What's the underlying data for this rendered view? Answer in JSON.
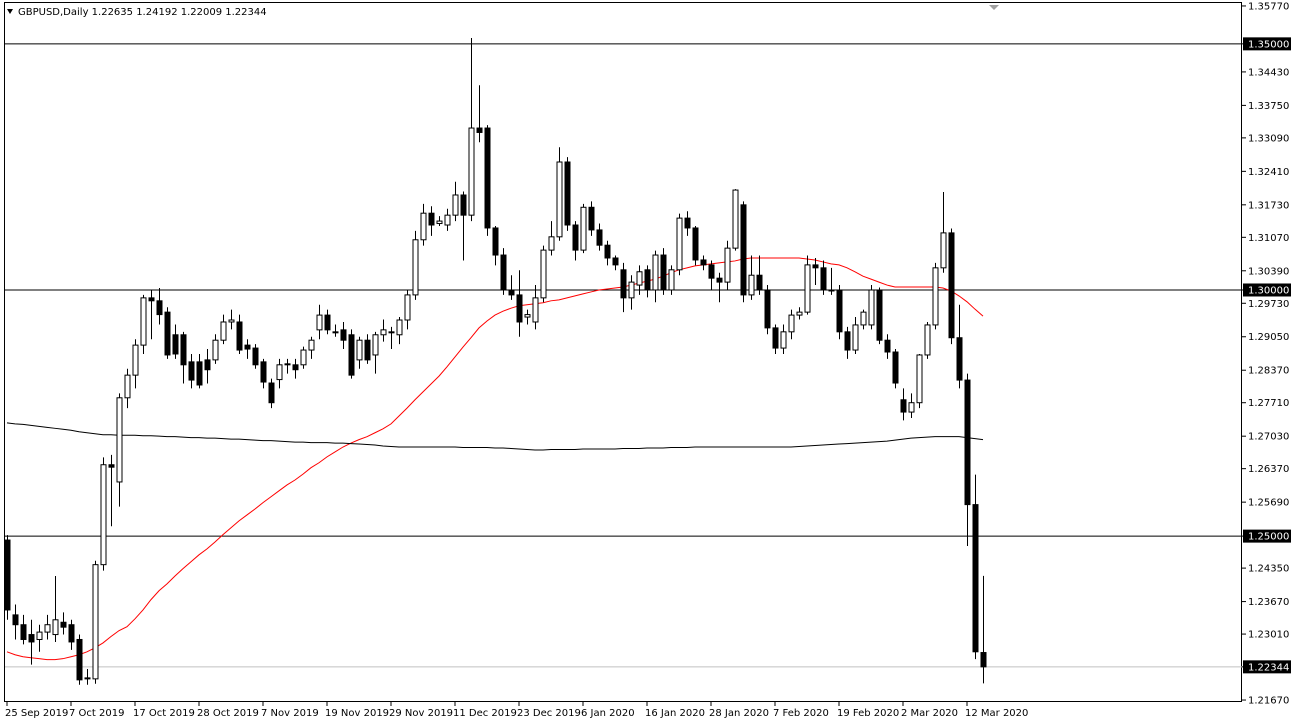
{
  "chart_data": {
    "type": "candlestick",
    "title": "GBPUSD,Daily  1.22635 1.24192 1.22009 1.22344",
    "categories": [
      "25 Sep 2019",
      null,
      null,
      null,
      null,
      null,
      null,
      null,
      "7 Oct 2019",
      null,
      null,
      null,
      null,
      null,
      null,
      null,
      "17 Oct 2019",
      null,
      null,
      null,
      null,
      null,
      null,
      null,
      "28 Oct 2019",
      null,
      null,
      null,
      null,
      null,
      null,
      null,
      "7 Nov 2019",
      null,
      null,
      null,
      null,
      null,
      null,
      null,
      "19 Nov 2019",
      null,
      null,
      null,
      null,
      null,
      null,
      null,
      "29 Nov 2019",
      null,
      null,
      null,
      null,
      null,
      null,
      null,
      "11 Dec 2019",
      null,
      null,
      null,
      null,
      null,
      null,
      null,
      "23 Dec 2019",
      null,
      null,
      null,
      null,
      null,
      null,
      null,
      "6 Jan 2020",
      null,
      null,
      null,
      null,
      null,
      null,
      null,
      "16 Jan 2020",
      null,
      null,
      null,
      null,
      null,
      null,
      null,
      "28 Jan 2020",
      null,
      null,
      null,
      null,
      null,
      null,
      null,
      "7 Feb 2020",
      null,
      null,
      null,
      null,
      null,
      null,
      null,
      "19 Feb 2020",
      null,
      null,
      null,
      null,
      null,
      null,
      null,
      "2 Mar 2020",
      null,
      null,
      null,
      null,
      null,
      null,
      null,
      "12 Mar 2020",
      null,
      null
    ],
    "open": [
      1.2492,
      1.234,
      1.232,
      1.23,
      1.229,
      1.2305,
      1.23,
      1.2325,
      1.232,
      1.229,
      1.221,
      1.221,
      1.2442,
      1.2645,
      1.261,
      1.2781,
      1.2827,
      1.2888,
      1.2984,
      1.2978,
      1.2955,
      1.2909,
      1.2909,
      1.2854,
      1.2854,
      1.2858,
      1.2858,
      1.2898,
      1.2935,
      1.2935,
      1.2888,
      1.2882,
      1.2854,
      1.2811,
      1.2818,
      1.2848,
      1.2848,
      1.2848,
      1.2878,
      1.2919,
      1.2949,
      1.2915,
      1.2919,
      1.2909,
      1.2858,
      1.2898,
      1.2868,
      1.2909,
      1.2915,
      1.2909,
      1.2939,
      1.299,
      1.3102,
      1.3156,
      1.3135,
      1.3132,
      1.3152,
      1.3193,
      1.3152,
      1.3329,
      1.3329,
      1.3126,
      1.3071,
      1.3,
      1.299,
      1.2945,
      1.2935,
      1.2984,
      1.3081,
      1.3108,
      1.326,
      1.3132,
      1.3081,
      1.3168,
      1.3122,
      1.3091,
      1.3065,
      1.3041,
      1.2984,
      1.301,
      1.3041,
      1.3,
      1.3071,
      1.3,
      1.3041,
      1.3146,
      1.3126,
      1.3061,
      1.3051,
      1.3024,
      1.3016,
      1.3085,
      1.3173,
      1.299,
      1.303,
      1.3,
      1.2923,
      1.2882,
      1.2915,
      1.2949,
      1.2955,
      1.3051,
      1.3045,
      1.3,
      1.3,
      1.2915,
      1.2878,
      1.2929,
      1.2929,
      1.3,
      1.2898,
      1.2874,
      1.2777,
      1.2752,
      1.2771,
      1.2868,
      1.2929,
      1.3045,
      1.3116,
      1.2903,
      1.2817,
      1.2564,
      1.22635
    ],
    "high": [
      1.2502,
      1.2361,
      1.234,
      1.233,
      1.232,
      1.234,
      1.2419,
      1.2345,
      1.233,
      1.23,
      1.223,
      1.245,
      1.266,
      1.2665,
      1.279,
      1.284,
      1.29,
      1.299,
      1.3,
      1.3004,
      1.2965,
      1.293,
      1.2915,
      1.287,
      1.287,
      1.288,
      1.291,
      1.295,
      1.296,
      1.295,
      1.29,
      1.289,
      1.286,
      1.282,
      1.286,
      1.286,
      1.286,
      1.2885,
      1.2905,
      1.297,
      1.296,
      1.293,
      1.2935,
      1.292,
      1.2905,
      1.291,
      1.2915,
      1.294,
      1.2925,
      1.2945,
      1.3,
      1.312,
      1.3175,
      1.317,
      1.315,
      1.3165,
      1.322,
      1.32,
      1.3512,
      1.3416,
      1.3335,
      1.313,
      1.3085,
      1.303,
      1.304,
      1.296,
      1.301,
      1.309,
      1.314,
      1.329,
      1.327,
      1.314,
      1.3175,
      1.318,
      1.3135,
      1.31,
      1.307,
      1.3055,
      1.303,
      1.305,
      1.305,
      1.308,
      1.3085,
      1.305,
      1.3155,
      1.316,
      1.313,
      1.307,
      1.306,
      1.3035,
      1.31,
      1.3205,
      1.318,
      1.307,
      1.307,
      1.301,
      1.293,
      1.293,
      1.296,
      1.2965,
      1.307,
      1.3065,
      1.306,
      1.3045,
      1.301,
      1.2925,
      1.2945,
      1.296,
      1.301,
      1.3005,
      1.291,
      1.288,
      1.28,
      1.279,
      1.287,
      1.2935,
      1.3055,
      1.3199,
      1.3125,
      1.297,
      1.283,
      1.2625,
      1.24192
    ],
    "low": [
      1.233,
      1.229,
      1.228,
      1.2239,
      1.2265,
      1.229,
      1.2285,
      1.23,
      1.2269,
      1.2198,
      1.2198,
      1.22,
      1.243,
      1.252,
      1.256,
      1.276,
      1.28,
      1.287,
      1.29,
      1.293,
      1.286,
      1.286,
      1.281,
      1.28,
      1.28,
      1.281,
      1.285,
      1.289,
      1.292,
      1.287,
      1.286,
      1.284,
      1.28,
      1.276,
      1.28,
      1.283,
      1.282,
      1.284,
      1.286,
      1.29,
      1.291,
      1.2905,
      1.288,
      1.282,
      1.284,
      1.285,
      1.283,
      1.2895,
      1.288,
      1.289,
      1.292,
      1.298,
      1.309,
      1.311,
      1.313,
      1.312,
      1.314,
      1.306,
      1.314,
      1.33,
      1.311,
      1.305,
      1.299,
      1.298,
      1.2905,
      1.293,
      1.292,
      1.2975,
      1.307,
      1.31,
      1.312,
      1.306,
      1.3075,
      1.311,
      1.308,
      1.305,
      1.304,
      1.2955,
      1.296,
      1.299,
      1.2985,
      1.2975,
      1.299,
      1.299,
      1.303,
      1.311,
      1.305,
      1.304,
      1.3,
      1.2975,
      1.3,
      1.308,
      1.2975,
      1.298,
      1.299,
      1.291,
      1.287,
      1.287,
      1.29,
      1.294,
      1.295,
      1.301,
      1.299,
      1.299,
      1.29,
      1.286,
      1.287,
      1.292,
      1.292,
      1.289,
      1.286,
      1.28,
      1.2735,
      1.274,
      1.276,
      1.286,
      1.292,
      1.3035,
      1.289,
      1.28,
      1.248,
      1.225,
      1.22009
    ],
    "close": [
      1.235,
      1.232,
      1.229,
      1.2285,
      1.2305,
      1.232,
      1.233,
      1.2315,
      1.2285,
      1.2208,
      1.2212,
      1.2442,
      1.2645,
      1.264,
      1.2781,
      1.2827,
      1.2888,
      1.2984,
      1.2978,
      1.295,
      1.2868,
      1.287,
      1.2848,
      1.2817,
      1.2807,
      1.2838,
      1.2898,
      1.2935,
      1.2939,
      1.2878,
      1.288,
      1.2848,
      1.2813,
      1.2771,
      1.2848,
      1.285,
      1.2838,
      1.2878,
      1.2898,
      1.2949,
      1.2919,
      1.2915,
      1.2898,
      1.2827,
      1.2898,
      1.2858,
      1.2909,
      1.2919,
      1.2913,
      1.2939,
      1.299,
      1.3102,
      1.3156,
      1.3132,
      1.314,
      1.3152,
      1.3193,
      1.3152,
      1.3329,
      1.332,
      1.3126,
      1.3071,
      1.3,
      1.299,
      1.2935,
      1.295,
      1.2984,
      1.3081,
      1.3108,
      1.326,
      1.3132,
      1.3081,
      1.3168,
      1.3122,
      1.3091,
      1.3065,
      1.3051,
      1.2984,
      1.3016,
      1.3037,
      1.3,
      1.3071,
      1.3,
      1.3041,
      1.3146,
      1.3126,
      1.3061,
      1.3051,
      1.3024,
      1.3016,
      1.3085,
      1.3203,
      1.299,
      1.303,
      1.3,
      1.2923,
      1.2882,
      1.2915,
      1.2949,
      1.2955,
      1.3051,
      1.3045,
      1.3,
      1.3,
      1.2915,
      1.2878,
      1.2929,
      1.2955,
      1.3,
      1.2898,
      1.2874,
      1.2811,
      1.2752,
      1.2771,
      1.2868,
      1.2929,
      1.3045,
      1.3116,
      1.2903,
      1.2817,
      1.2564,
      1.2265,
      1.22344
    ],
    "bull_color": "#ffffff",
    "bear_color": "#000000",
    "wick_color": "#000000",
    "lines": [
      {
        "color": "#ff0000",
        "values": [
          1.2265,
          1.2259,
          1.2255,
          1.2253,
          1.2251,
          1.2249,
          1.2249,
          1.2251,
          1.2255,
          1.2259,
          1.2265,
          1.2273,
          1.2283,
          1.2296,
          1.2308,
          1.2316,
          1.2332,
          1.235,
          1.2371,
          1.2389,
          1.2403,
          1.2419,
          1.2434,
          1.2448,
          1.2462,
          1.2474,
          1.2488,
          1.2503,
          1.2517,
          1.2531,
          1.2543,
          1.2555,
          1.2568,
          1.258,
          1.2592,
          1.2604,
          1.2614,
          1.2626,
          1.2639,
          1.2649,
          1.2661,
          1.2671,
          1.2681,
          1.2689,
          1.2696,
          1.2702,
          1.271,
          1.2718,
          1.2728,
          1.2744,
          1.276,
          1.2777,
          1.2793,
          1.2809,
          1.2825,
          1.2844,
          1.2864,
          1.2884,
          1.2903,
          1.2923,
          1.2937,
          1.2949,
          1.2957,
          1.2963,
          1.2968,
          1.297,
          1.2972,
          1.2974,
          1.2978,
          1.298,
          1.2984,
          1.2988,
          1.2992,
          1.2996,
          1.3,
          1.3002,
          1.3004,
          1.3006,
          1.301,
          1.3014,
          1.3018,
          1.3022,
          1.3028,
          1.3035,
          1.3041,
          1.3045,
          1.3049,
          1.3051,
          1.3053,
          1.3055,
          1.3057,
          1.3059,
          1.3063,
          1.3065,
          1.3065,
          1.3065,
          1.3065,
          1.3065,
          1.3065,
          1.3065,
          1.3063,
          1.3061,
          1.3057,
          1.3053,
          1.3051,
          1.3045,
          1.3037,
          1.3028,
          1.3022,
          1.3016,
          1.301,
          1.3006,
          1.3006,
          1.3006,
          1.3006,
          1.3006,
          1.3006,
          1.3004,
          1.2998,
          1.2988,
          1.2976,
          1.2961,
          1.2947
        ]
      },
      {
        "color": "#000000",
        "values": [
          1.273,
          1.2728,
          1.2727,
          1.2725,
          1.2723,
          1.2721,
          1.2719,
          1.2717,
          1.2715,
          1.2712,
          1.271,
          1.2708,
          1.2706,
          1.2706,
          1.2705,
          1.2705,
          1.2705,
          1.2704,
          1.2704,
          1.2703,
          1.2702,
          1.2702,
          1.2701,
          1.27,
          1.27,
          1.2699,
          1.2699,
          1.2698,
          1.2697,
          1.2697,
          1.2696,
          1.2695,
          1.2694,
          1.2694,
          1.2693,
          1.2692,
          1.2691,
          1.2691,
          1.269,
          1.269,
          1.269,
          1.2689,
          1.2689,
          1.2688,
          1.2687,
          1.2686,
          1.2685,
          1.2683,
          1.2682,
          1.2681,
          1.2681,
          1.2681,
          1.2681,
          1.2681,
          1.2681,
          1.2681,
          1.2681,
          1.268,
          1.268,
          1.268,
          1.268,
          1.2679,
          1.2679,
          1.2678,
          1.2677,
          1.2676,
          1.2675,
          1.2675,
          1.2676,
          1.2676,
          1.2676,
          1.2676,
          1.2677,
          1.2677,
          1.2677,
          1.2677,
          1.2677,
          1.2678,
          1.2678,
          1.2678,
          1.2679,
          1.2679,
          1.2679,
          1.268,
          1.268,
          1.268,
          1.2681,
          1.2681,
          1.2681,
          1.2681,
          1.2681,
          1.2681,
          1.2681,
          1.2681,
          1.2681,
          1.2681,
          1.2681,
          1.2681,
          1.2681,
          1.2682,
          1.2683,
          1.2684,
          1.2685,
          1.2686,
          1.2687,
          1.2688,
          1.2689,
          1.269,
          1.2691,
          1.2692,
          1.2693,
          1.2695,
          1.2697,
          1.2699,
          1.27,
          1.2701,
          1.2702,
          1.2702,
          1.2702,
          1.2702,
          1.27,
          1.2698,
          1.2696
        ]
      }
    ],
    "ylim": [
      1.2163,
      1.3583
    ],
    "yticks": [
      {
        "value": 1.3577,
        "label": "1.35770"
      },
      {
        "value": 1.35,
        "label": "1.35000",
        "line": "#000000"
      },
      {
        "value": 1.3443,
        "label": "1.34430"
      },
      {
        "value": 1.3375,
        "label": "1.33750"
      },
      {
        "value": 1.3309,
        "label": "1.33090"
      },
      {
        "value": 1.3241,
        "label": "1.32410"
      },
      {
        "value": 1.3173,
        "label": "1.31730"
      },
      {
        "value": 1.3107,
        "label": "1.31070"
      },
      {
        "value": 1.3039,
        "label": "1.30390"
      },
      {
        "value": 1.3,
        "label": "1.30000",
        "line": "#000000"
      },
      {
        "value": 1.2973,
        "label": "1.29730"
      },
      {
        "value": 1.2905,
        "label": "1.29050"
      },
      {
        "value": 1.2837,
        "label": "1.28370"
      },
      {
        "value": 1.2771,
        "label": "1.27710"
      },
      {
        "value": 1.2703,
        "label": "1.27030"
      },
      {
        "value": 1.2637,
        "label": "1.26370"
      },
      {
        "value": 1.2569,
        "label": "1.25690"
      },
      {
        "value": 1.25,
        "label": "1.25000",
        "line": "#000000"
      },
      {
        "value": 1.2435,
        "label": "1.24350"
      },
      {
        "value": 1.2367,
        "label": "1.23670"
      },
      {
        "value": 1.2301,
        "label": "1.23010"
      },
      {
        "value": 1.22344,
        "label": "1.22344",
        "line": "#c0c0c0"
      },
      {
        "value": 1.2167,
        "label": "1.21670"
      }
    ]
  }
}
